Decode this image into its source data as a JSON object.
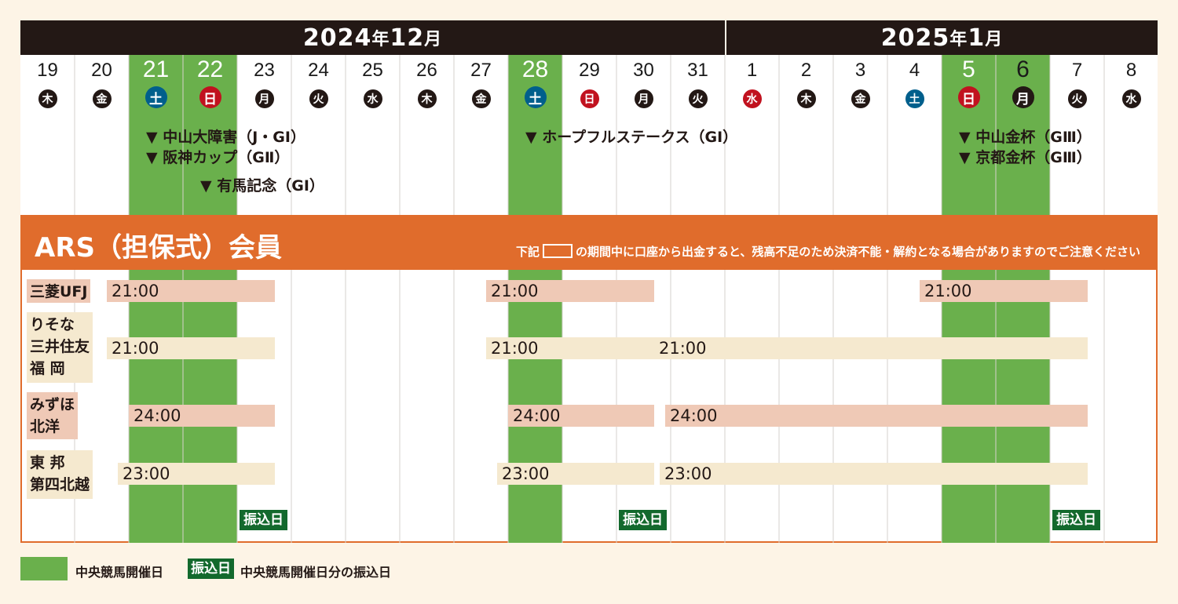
{
  "months": [
    {
      "year": "2024",
      "year_unit": "年",
      "month": "12",
      "month_unit": "月",
      "start": 0,
      "span": 13
    },
    {
      "year": "2025",
      "year_unit": "年",
      "month": "1",
      "month_unit": "月",
      "start": 13,
      "span": 8
    }
  ],
  "days": [
    {
      "num": "19",
      "wd": "木",
      "type": "normal"
    },
    {
      "num": "20",
      "wd": "金",
      "type": "normal"
    },
    {
      "num": "21",
      "wd": "土",
      "type": "sat",
      "race": true
    },
    {
      "num": "22",
      "wd": "日",
      "type": "sun",
      "race": true
    },
    {
      "num": "23",
      "wd": "月",
      "type": "normal"
    },
    {
      "num": "24",
      "wd": "火",
      "type": "normal"
    },
    {
      "num": "25",
      "wd": "水",
      "type": "normal"
    },
    {
      "num": "26",
      "wd": "木",
      "type": "normal"
    },
    {
      "num": "27",
      "wd": "金",
      "type": "normal"
    },
    {
      "num": "28",
      "wd": "土",
      "type": "sat",
      "race": true
    },
    {
      "num": "29",
      "wd": "日",
      "type": "sun"
    },
    {
      "num": "30",
      "wd": "月",
      "type": "normal"
    },
    {
      "num": "31",
      "wd": "火",
      "type": "normal"
    },
    {
      "num": "1",
      "wd": "水",
      "type": "holiday"
    },
    {
      "num": "2",
      "wd": "木",
      "type": "normal"
    },
    {
      "num": "3",
      "wd": "金",
      "type": "normal"
    },
    {
      "num": "4",
      "wd": "土",
      "type": "sat"
    },
    {
      "num": "5",
      "wd": "日",
      "type": "sun",
      "race": true
    },
    {
      "num": "6",
      "wd": "月",
      "type": "normal",
      "race": true
    },
    {
      "num": "7",
      "wd": "火",
      "type": "normal"
    },
    {
      "num": "8",
      "wd": "水",
      "type": "normal"
    }
  ],
  "events": [
    {
      "text": "▼ 中山大障害（J・GⅠ）",
      "col": 2,
      "row": 0
    },
    {
      "text": "▼ 阪神カップ（GⅡ）",
      "col": 2,
      "row": 1
    },
    {
      "text": "▼ 有馬記念（GⅠ）",
      "col": 3,
      "row": 2
    },
    {
      "text": "▼ ホープフルステークス（GⅠ）",
      "col": 9,
      "row": 0
    },
    {
      "text": "▼ 中山金杯（GⅢ）",
      "col": 17,
      "row": 0
    },
    {
      "text": "▼ 京都金杯（GⅢ）",
      "col": 17,
      "row": 1
    }
  ],
  "ars": {
    "title": "ARS（担保式）会員",
    "note_pre": "下記",
    "note_post": "の期間中に口座から出金すると、残高不足のため決済不能・解約となる場合がありますのでご注意ください"
  },
  "banks": [
    {
      "name": "三菱UFJ",
      "color": "pink",
      "bars": [
        {
          "time": "21:00",
          "from": 1.6,
          "to": 4.7,
          "color": "pink"
        },
        {
          "time": "21:00",
          "from": 8.6,
          "to": 11.7,
          "color": "pink"
        },
        {
          "time": "21:00",
          "from": 16.6,
          "to": 19.7,
          "color": "pink"
        }
      ]
    },
    {
      "name": "りそな\n三井住友\n福 岡",
      "color": "beige",
      "bars": [
        {
          "time": "21:00",
          "from": 1.6,
          "to": 4.7,
          "color": "beige"
        },
        {
          "time": "21:00",
          "from": 8.6,
          "to": 11.7,
          "color": "beige"
        },
        {
          "time": "21:00",
          "from": 11.7,
          "to": 19.7,
          "color": "beige"
        }
      ]
    },
    {
      "name": "みずほ\n北洋",
      "color": "pink",
      "bars": [
        {
          "time": "24:00",
          "from": 2.0,
          "to": 4.7,
          "color": "pink"
        },
        {
          "time": "24:00",
          "from": 9.0,
          "to": 11.7,
          "color": "pink"
        },
        {
          "time": "24:00",
          "from": 11.9,
          "to": 19.7,
          "color": "pink"
        }
      ]
    },
    {
      "name": "東 邦\n第四北越",
      "color": "beige",
      "bars": [
        {
          "time": "23:00",
          "from": 1.8,
          "to": 4.7,
          "color": "beige"
        },
        {
          "time": "23:00",
          "from": 8.8,
          "to": 11.7,
          "color": "beige"
        },
        {
          "time": "23:00",
          "from": 11.8,
          "to": 19.7,
          "color": "beige"
        }
      ]
    }
  ],
  "transfers": [
    {
      "label": "振込日",
      "col": 4
    },
    {
      "label": "振込日",
      "col": 11
    },
    {
      "label": "振込日",
      "col": 19
    }
  ],
  "legend": {
    "race_label": "中央競馬開催日",
    "transfer_badge": "振込日",
    "transfer_label": "中央競馬開催日分の振込日"
  },
  "colors": {
    "header": "#231815",
    "green": "#6ab04c",
    "orange": "#e06c2c",
    "pink": "#efc9b6",
    "beige": "#f5e9cf",
    "transfer": "#13692d",
    "sat": "#005f8c",
    "sun": "#c1121f",
    "normal": "#231815"
  }
}
